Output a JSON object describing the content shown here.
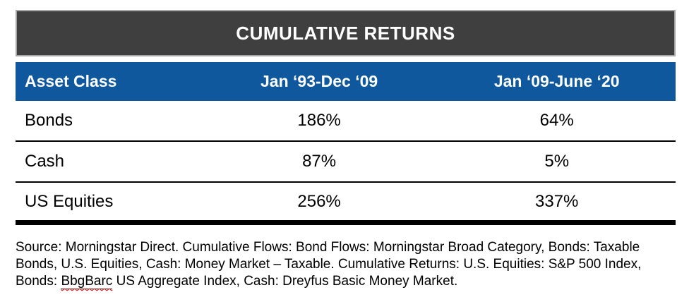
{
  "title": "CUMULATIVE RETURNS",
  "table": {
    "columns": [
      "Asset Class",
      "Jan ‘93-Dec ‘09",
      "Jan ‘09-June ‘20"
    ],
    "rows": [
      {
        "asset_class": "Bonds",
        "period1": "186%",
        "period2": "64%"
      },
      {
        "asset_class": "Cash",
        "period1": "87%",
        "period2": "5%"
      },
      {
        "asset_class": "US Equities",
        "period1": "256%",
        "period2": "337%"
      }
    ]
  },
  "footnote": {
    "line1": "Source: Morningstar Direct. Cumulative Flows: Bond Flows: Morningstar Broad Category, Bonds: Taxable",
    "line2": "Bonds, U.S. Equities, Cash: Money Market – Taxable. Cumulative Returns: U.S. Equities: S&P 500 Index,",
    "line3_prefix": "Bonds: ",
    "line3_misspelled_term": "BbgBarc",
    "line3_suffix": " US Aggregate Index, Cash: Dreyfus Basic Money Market."
  },
  "colors": {
    "title_bar_bg": "#3F3F3F",
    "title_bar_border": "#A6A6A6",
    "header_bg": "#10589E",
    "header_text": "#FFFFFF",
    "body_text": "#000000",
    "row_divider": "#000000",
    "spellcheck_underline": "#FF0000",
    "page_bg": "#FFFFFF"
  }
}
